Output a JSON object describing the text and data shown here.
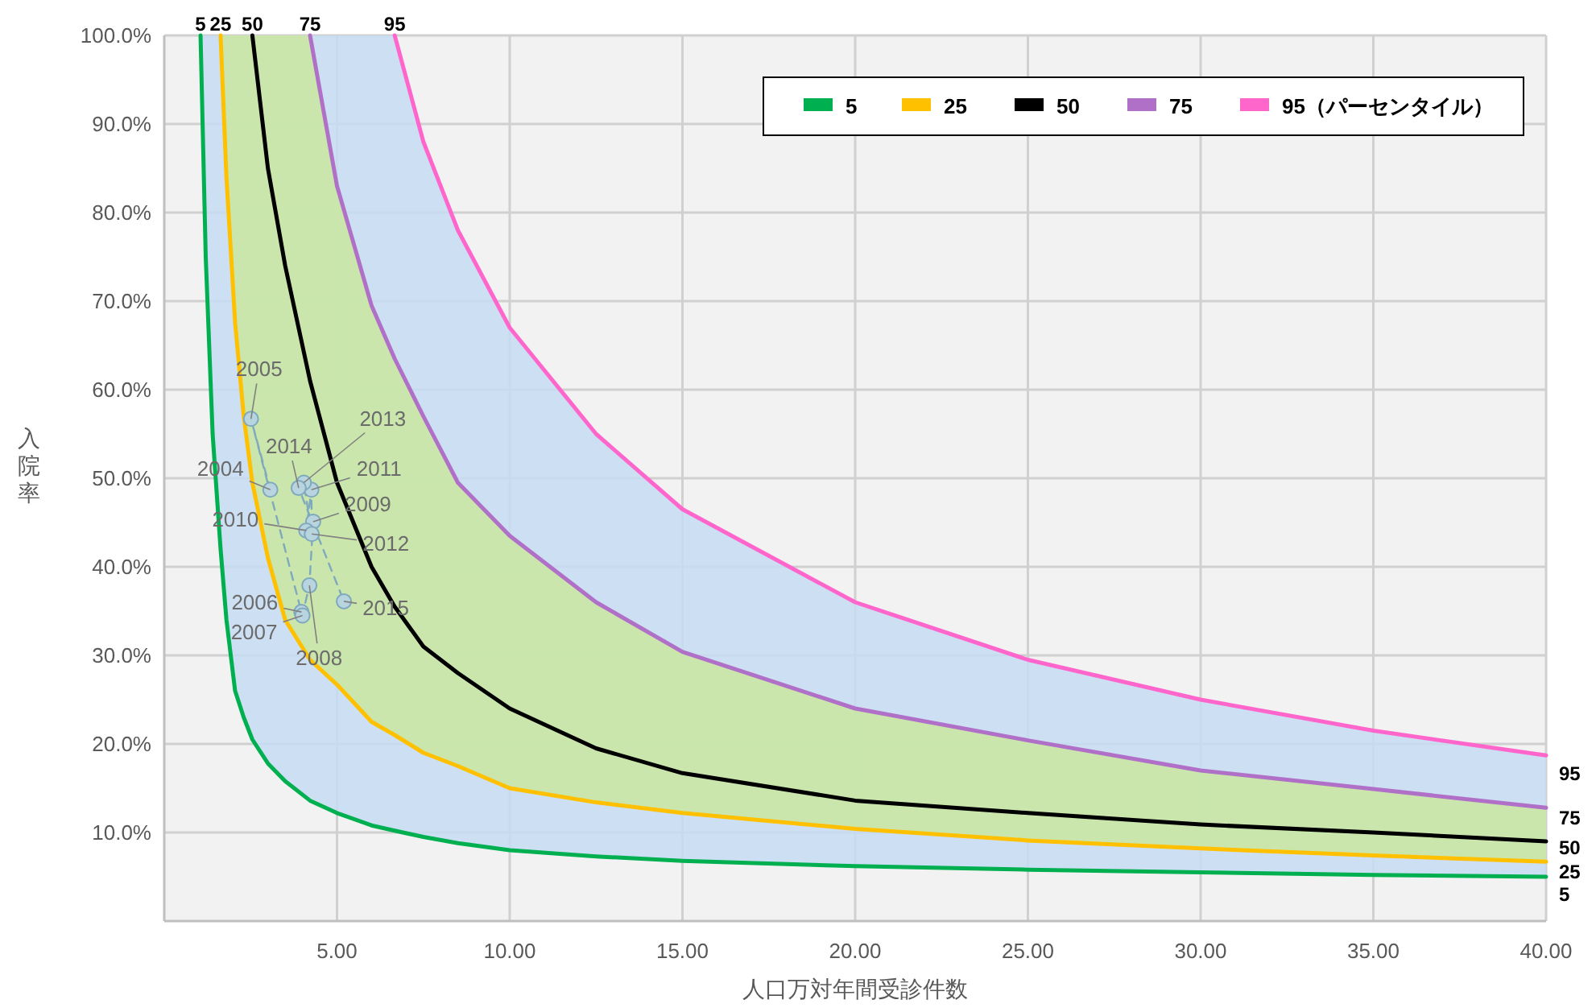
{
  "chart_data": {
    "type": "line",
    "xlabel": "人口万対年間受診件数",
    "ylabel": "入院率",
    "x": [
      1.05,
      1.2,
      1.4,
      1.63,
      1.8,
      2.05,
      2.3,
      2.55,
      3,
      3.5,
      4.22,
      5,
      6,
      6.67,
      7.5,
      8.5,
      10,
      12.5,
      15,
      20,
      25,
      30,
      35,
      40
    ],
    "series": [
      {
        "name": "5",
        "color": "#00b050",
        "values": [
          100,
          75,
          55,
          42,
          34,
          26,
          23,
          20.5,
          17.8,
          15.8,
          13.6,
          12.2,
          10.8,
          10.2,
          9.5,
          8.8,
          8,
          7.3,
          6.8,
          6.2,
          5.8,
          5.5,
          5.2,
          5
        ]
      },
      {
        "name": "25",
        "color": "#ffc000",
        "values": [
          null,
          null,
          null,
          100,
          84,
          67.6,
          57,
          49.5,
          41,
          34,
          29.5,
          26.7,
          22.5,
          21,
          19,
          17.5,
          15,
          13.4,
          12.2,
          10.4,
          9.1,
          8.2,
          7.4,
          6.7
        ]
      },
      {
        "name": "50",
        "color": "#000000",
        "values": [
          null,
          null,
          null,
          null,
          null,
          null,
          null,
          100,
          85,
          74,
          61,
          49.5,
          40,
          35.5,
          31,
          28,
          24,
          19.5,
          16.7,
          13.6,
          12.2,
          10.9,
          10,
          9
        ],
        "lower": [
          null,
          null,
          null,
          100,
          84,
          67.6,
          57,
          49.5,
          41,
          34,
          29.5,
          26.7,
          22.5,
          21,
          19,
          17.5,
          15,
          13.4,
          12.2,
          10.4,
          9.1,
          8.2,
          7.4,
          6.7
        ],
        "upper": [
          null,
          null,
          null,
          100,
          100,
          100,
          100,
          100,
          100,
          100,
          100,
          83,
          69.5,
          63.5,
          57,
          49.5,
          43.5,
          36,
          30.4,
          24,
          20.4,
          17,
          14.9,
          12.8
        ]
      },
      {
        "name": "75",
        "color": "#b070c8",
        "values": [
          null,
          null,
          null,
          null,
          null,
          null,
          null,
          null,
          null,
          null,
          100,
          83,
          69.5,
          63.5,
          57,
          49.5,
          43.5,
          36,
          30.4,
          24,
          20.4,
          17,
          14.9,
          12.8
        ]
      },
      {
        "name": "95（パーセンタイル）",
        "color": "#ff66cc",
        "values": [
          null,
          null,
          null,
          null,
          null,
          null,
          null,
          null,
          null,
          null,
          null,
          null,
          null,
          100,
          88,
          78,
          67,
          55,
          46.5,
          36,
          29.5,
          25,
          21.5,
          18.7
        ],
        "lower": [
          100,
          75,
          55,
          42,
          34,
          26,
          23,
          20.5,
          17.8,
          15.8,
          13.6,
          12.2,
          10.8,
          10.2,
          9.5,
          8.8,
          8,
          7.3,
          6.8,
          6.2,
          5.8,
          5.5,
          5.2,
          5
        ],
        "upper": [
          100,
          100,
          100,
          100,
          100,
          100,
          100,
          100,
          100,
          100,
          100,
          100,
          100,
          100,
          88,
          78,
          67,
          55,
          46.5,
          36,
          29.5,
          25,
          21.5,
          18.7
        ]
      },
      {
        "type": "line",
        "marker": "circle",
        "line_style": "dashed",
        "color": "#7fa9bd",
        "x": [
          3.07,
          2.51,
          3.97,
          4.0,
          4.2,
          4.31,
          4.11,
          4.26,
          4.27,
          4.04,
          3.89,
          5.2
        ],
        "values": [
          48.7,
          56.7,
          34.9,
          34.5,
          37.9,
          45.1,
          44.1,
          48.7,
          43.7,
          49.5,
          48.9,
          36.1
        ]
      }
    ],
    "annotations": [
      {
        "text": "2004",
        "x": 3.07,
        "y": 48.7
      },
      {
        "text": "2005",
        "x": 2.51,
        "y": 56.7
      },
      {
        "text": "2006",
        "x": 3.97,
        "y": 34.9
      },
      {
        "text": "2007",
        "x": 4.0,
        "y": 34.5
      },
      {
        "text": "2008",
        "x": 4.2,
        "y": 37.9
      },
      {
        "text": "2009",
        "x": 4.31,
        "y": 45.1
      },
      {
        "text": "2010",
        "x": 4.11,
        "y": 44.1
      },
      {
        "text": "2011",
        "x": 4.26,
        "y": 48.7
      },
      {
        "text": "2012",
        "x": 4.27,
        "y": 43.7
      },
      {
        "text": "2013",
        "x": 4.04,
        "y": 49.5
      },
      {
        "text": "2014",
        "x": 3.89,
        "y": 48.9
      },
      {
        "text": "2015",
        "x": 5.2,
        "y": 36.1
      },
      {
        "text": "5",
        "x": 1.05,
        "y": 100
      },
      {
        "text": "25",
        "x": 1.63,
        "y": 100
      },
      {
        "text": "50",
        "x": 2.55,
        "y": 100
      },
      {
        "text": "75",
        "x": 4.22,
        "y": 100
      },
      {
        "text": "95",
        "x": 6.67,
        "y": 100
      },
      {
        "text": "95",
        "x": 40,
        "y": 18.7
      },
      {
        "text": "75",
        "x": 40,
        "y": 12.8
      },
      {
        "text": "50",
        "x": 40,
        "y": 9
      },
      {
        "text": "25",
        "x": 40,
        "y": 6.7
      },
      {
        "text": "5",
        "x": 40,
        "y": 5
      }
    ],
    "xlim": [
      0,
      40
    ],
    "xticks": [
      {
        "value": 5,
        "label": "5.00"
      },
      {
        "value": 10,
        "label": "10.00"
      },
      {
        "value": 15,
        "label": "15.00"
      },
      {
        "value": 20,
        "label": "20.00"
      },
      {
        "value": 25,
        "label": "25.00"
      },
      {
        "value": 30,
        "label": "30.00"
      },
      {
        "value": 35,
        "label": "35.00"
      },
      {
        "value": 40,
        "label": "40.00"
      }
    ],
    "ylim": [
      0,
      100
    ],
    "yticks": [
      {
        "value": 10,
        "label": "10.0%"
      },
      {
        "value": 20,
        "label": "20.0%"
      },
      {
        "value": 30,
        "label": "30.0%"
      },
      {
        "value": 40,
        "label": "40.0%"
      },
      {
        "value": 50,
        "label": "50.0%"
      },
      {
        "value": 60,
        "label": "60.0%"
      },
      {
        "value": 70,
        "label": "70.0%"
      },
      {
        "value": 80,
        "label": "80.0%"
      },
      {
        "value": 90,
        "label": "90.0%"
      },
      {
        "value": 100,
        "label": "100.0%"
      }
    ],
    "grid": true,
    "legend": "top right"
  }
}
